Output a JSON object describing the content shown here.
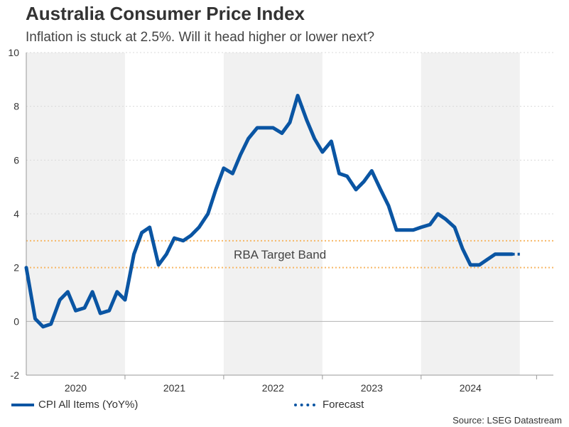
{
  "header": {
    "title": "Australia Consumer Price Index",
    "subtitle": "Inflation is stuck at 2.5%. Will it head higher or lower next?"
  },
  "legend": {
    "items": [
      {
        "label": "CPI All Items (YoY%)",
        "style": "solid"
      },
      {
        "label": "Forecast",
        "style": "dotted"
      }
    ]
  },
  "footer": {
    "source": "Source: LSEG Datastream"
  },
  "colors": {
    "series": "#0a55a3",
    "band": "#f7b867",
    "shade": "#f1f1f1",
    "axis": "#999999",
    "text": "#333333"
  },
  "chart_data": {
    "type": "line",
    "title": "Australia Consumer Price Index",
    "subtitle": "Inflation is stuck at 2.5%. Will it head higher or lower next?",
    "xlabel": "",
    "ylabel": "",
    "ylim": [
      -2,
      10
    ],
    "yticks": [
      -2,
      0,
      2,
      4,
      6,
      8,
      10
    ],
    "xlim": [
      2019.83,
      2025.17
    ],
    "year_labels": [
      {
        "label": "2020",
        "year": 2020
      },
      {
        "label": "2021",
        "year": 2021
      },
      {
        "label": "2022",
        "year": 2022
      },
      {
        "label": "2023",
        "year": 2023
      },
      {
        "label": "2024",
        "year": 2024
      }
    ],
    "shaded_years": [
      2020,
      2022,
      2024
    ],
    "grid": "horizontal dotted",
    "reference_band": {
      "low": 2,
      "high": 3,
      "label": "RBA Target Band",
      "label_at": {
        "x": 2022.4,
        "y": 2.5
      }
    },
    "series": [
      {
        "name": "CPI All Items (YoY%)",
        "style": "solid",
        "points": [
          [
            2019.83,
            2.0
          ],
          [
            2019.92,
            0.1
          ],
          [
            2020.0,
            -0.2
          ],
          [
            2020.08,
            -0.1
          ],
          [
            2020.17,
            0.8
          ],
          [
            2020.25,
            1.1
          ],
          [
            2020.33,
            0.4
          ],
          [
            2020.42,
            0.5
          ],
          [
            2020.5,
            1.1
          ],
          [
            2020.58,
            0.3
          ],
          [
            2020.67,
            0.4
          ],
          [
            2020.75,
            1.1
          ],
          [
            2020.83,
            0.8
          ],
          [
            2020.92,
            2.5
          ],
          [
            2021.0,
            3.3
          ],
          [
            2021.08,
            3.5
          ],
          [
            2021.17,
            2.1
          ],
          [
            2021.25,
            2.5
          ],
          [
            2021.33,
            3.1
          ],
          [
            2021.42,
            3.0
          ],
          [
            2021.5,
            3.2
          ],
          [
            2021.58,
            3.5
          ],
          [
            2021.67,
            4.0
          ],
          [
            2021.75,
            4.9
          ],
          [
            2021.83,
            5.7
          ],
          [
            2021.92,
            5.5
          ],
          [
            2022.0,
            6.2
          ],
          [
            2022.08,
            6.8
          ],
          [
            2022.17,
            7.2
          ],
          [
            2022.25,
            7.2
          ],
          [
            2022.33,
            7.2
          ],
          [
            2022.42,
            7.0
          ],
          [
            2022.5,
            7.4
          ],
          [
            2022.58,
            8.4
          ],
          [
            2022.67,
            7.5
          ],
          [
            2022.75,
            6.8
          ],
          [
            2022.83,
            6.3
          ],
          [
            2022.92,
            6.7
          ],
          [
            2023.0,
            5.5
          ],
          [
            2023.08,
            5.4
          ],
          [
            2023.17,
            4.9
          ],
          [
            2023.25,
            5.2
          ],
          [
            2023.33,
            5.6
          ],
          [
            2023.42,
            4.9
          ],
          [
            2023.5,
            4.3
          ],
          [
            2023.58,
            3.4
          ],
          [
            2023.67,
            3.4
          ],
          [
            2023.75,
            3.4
          ],
          [
            2023.83,
            3.5
          ],
          [
            2023.92,
            3.6
          ],
          [
            2024.0,
            4.0
          ],
          [
            2024.08,
            3.8
          ],
          [
            2024.17,
            3.5
          ],
          [
            2024.25,
            2.7
          ],
          [
            2024.33,
            2.1
          ],
          [
            2024.42,
            2.1
          ],
          [
            2024.5,
            2.3
          ],
          [
            2024.58,
            2.5
          ],
          [
            2024.67,
            2.5
          ],
          [
            2024.75,
            2.5
          ]
        ]
      },
      {
        "name": "Forecast",
        "style": "dotted",
        "points": [
          [
            2024.75,
            2.5
          ],
          [
            2024.83,
            2.5
          ]
        ]
      }
    ]
  }
}
